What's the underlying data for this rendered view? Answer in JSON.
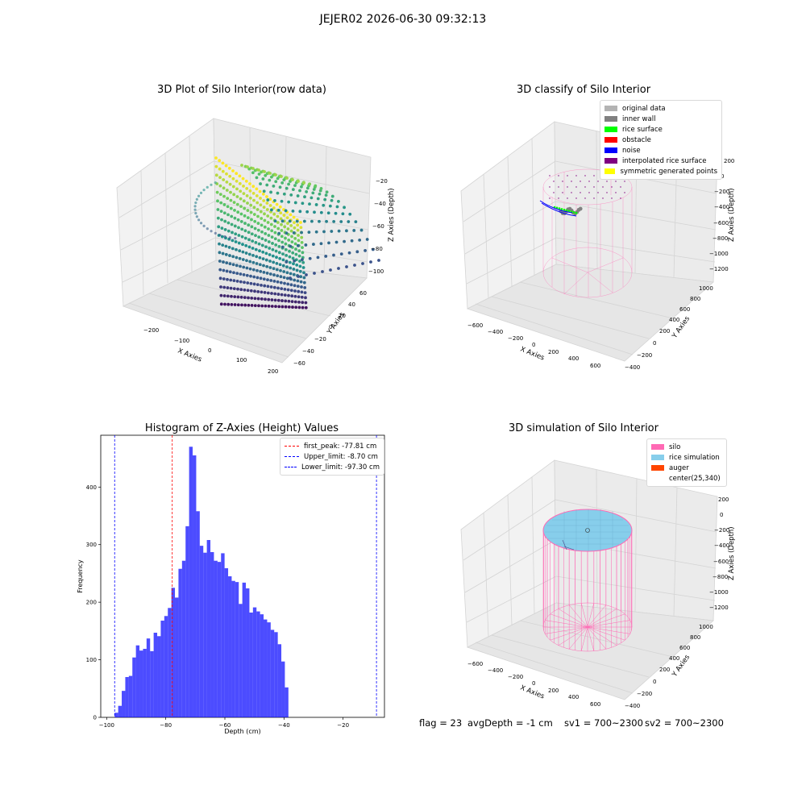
{
  "suptitle": "JEJER02 2026-06-30 09:32:13",
  "panels": {
    "raw": {
      "title": "3D Plot of Silo Interior(row data)",
      "xlabel": "X Axies",
      "ylabel": "Y Axies",
      "zlabel": "Z Axies (Depth)",
      "xticks": [
        "−200",
        "−100",
        "0",
        "100",
        "200"
      ],
      "yticks": [
        "−60",
        "−40",
        "−20",
        "0",
        "20",
        "40",
        "60"
      ],
      "zticks": [
        "−20",
        "−40",
        "−60",
        "−80",
        "−100"
      ]
    },
    "classify": {
      "title": "3D classify of Silo Interior",
      "xlabel": "X Axies",
      "ylabel": "Y Axies",
      "zlabel": "Z Axies (Depth)",
      "xticks": [
        "−600",
        "−400",
        "−200",
        "0",
        "200",
        "400",
        "600"
      ],
      "yticks": [
        "−400",
        "−200",
        "0",
        "200",
        "400",
        "600",
        "800",
        "1000"
      ],
      "zticks": [
        "200",
        "0",
        "−200",
        "−400",
        "−600",
        "−800",
        "−1000",
        "−1200"
      ],
      "legend": [
        {
          "label": "original data",
          "color": "#b3b3b3"
        },
        {
          "label": "inner wall",
          "color": "#808080"
        },
        {
          "label": "rice surface",
          "color": "#00ff00"
        },
        {
          "label": "obstacle",
          "color": "#ff0000"
        },
        {
          "label": "noise",
          "color": "#0000ff"
        },
        {
          "label": "interpolated rice surface",
          "color": "#800080"
        },
        {
          "label": "symmetric generated points",
          "color": "#ffff00"
        }
      ]
    },
    "simulation": {
      "title": "3D simulation of Silo Interior",
      "xlabel": "X Axies",
      "ylabel": "Y Axies",
      "zlabel": "Z Axies (Depth)",
      "xticks": [
        "−600",
        "−400",
        "−200",
        "0",
        "200",
        "400",
        "600"
      ],
      "yticks": [
        "−400",
        "−200",
        "0",
        "200",
        "400",
        "600",
        "800",
        "1000"
      ],
      "zticks": [
        "200",
        "0",
        "−200",
        "−400",
        "−600",
        "−800",
        "−1000",
        "−1200"
      ],
      "legend": [
        {
          "label": "silo",
          "color": "#ff69b4"
        },
        {
          "label": "rice simulation",
          "color": "#87ceeb"
        },
        {
          "label": "auger",
          "color": "#ff4500"
        },
        {
          "label": "center(25,340)",
          "color": ""
        }
      ]
    }
  },
  "chart_data": {
    "type": "bar",
    "title": "Histogram of Z-Axies (Height) Values",
    "xlabel": "Depth (cm)",
    "ylabel": "Frequency",
    "xlim": [
      -102,
      -6
    ],
    "ylim": [
      0,
      490
    ],
    "xticks": [
      -100,
      -80,
      -60,
      -40,
      -20
    ],
    "yticks": [
      0,
      100,
      200,
      300,
      400
    ],
    "bin_start": -97.3,
    "bin_width": 1.2,
    "values": [
      8,
      20,
      46,
      70,
      72,
      104,
      125,
      116,
      119,
      137,
      115,
      147,
      141,
      168,
      176,
      190,
      225,
      208,
      258,
      272,
      332,
      470,
      455,
      358,
      298,
      286,
      308,
      287,
      272,
      270,
      285,
      259,
      245,
      237,
      235,
      197,
      234,
      224,
      182,
      191,
      184,
      179,
      170,
      165,
      152,
      148,
      127,
      97,
      52
    ],
    "bar_color": "#0000ff",
    "lines": [
      {
        "label": "first_peak: -77.81 cm",
        "value": -77.81,
        "color": "#ff0000"
      },
      {
        "label": "Upper_limit: -8.70 cm",
        "value": -8.7,
        "color": "#0000ff"
      },
      {
        "label": "Lower_limit: -97.30 cm",
        "value": -97.3,
        "color": "#0000ff"
      }
    ]
  },
  "footer": {
    "flag": "flag = 23",
    "avg": "avgDepth = -1 cm",
    "sv1": "sv1 = 700~2300",
    "sv2": "sv2 = 700~2300"
  }
}
